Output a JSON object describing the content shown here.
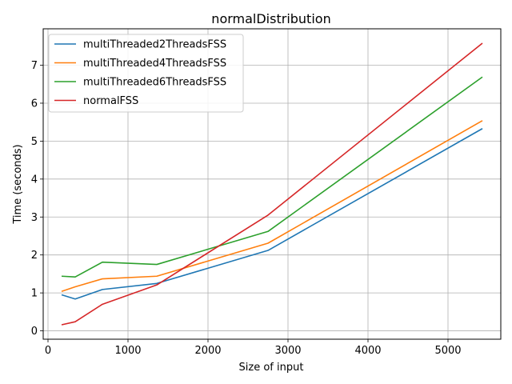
{
  "chart_data": {
    "type": "line",
    "title": "normalDistribution",
    "xlabel": "Size of input",
    "ylabel": "Time (seconds)",
    "xlim": [
      -60,
      5660
    ],
    "ylim": [
      -0.22,
      7.96
    ],
    "xticks": [
      0,
      1000,
      2000,
      3000,
      4000,
      5000
    ],
    "yticks": [
      0,
      1,
      2,
      3,
      4,
      5,
      6,
      7
    ],
    "grid": true,
    "legend": "top-left",
    "series": [
      {
        "name": "multiThreaded2ThreadsFSS",
        "color": "#1f77b4",
        "x": [
          170,
          340,
          680,
          1360,
          2750,
          5430
        ],
        "y": [
          0.95,
          0.84,
          1.09,
          1.25,
          2.12,
          5.33
        ]
      },
      {
        "name": "multiThreaded4ThreadsFSS",
        "color": "#ff7f0e",
        "x": [
          170,
          340,
          680,
          1360,
          2750,
          5430
        ],
        "y": [
          1.04,
          1.16,
          1.37,
          1.44,
          2.31,
          5.54
        ]
      },
      {
        "name": "multiThreaded6ThreadsFSS",
        "color": "#2ca02c",
        "x": [
          170,
          340,
          680,
          1360,
          2750,
          5430
        ],
        "y": [
          1.44,
          1.42,
          1.81,
          1.75,
          2.62,
          6.69
        ]
      },
      {
        "name": "normalFSS",
        "color": "#d62728",
        "x": [
          170,
          340,
          680,
          1360,
          2750,
          5430
        ],
        "y": [
          0.16,
          0.24,
          0.7,
          1.21,
          3.05,
          7.58
        ]
      }
    ]
  }
}
